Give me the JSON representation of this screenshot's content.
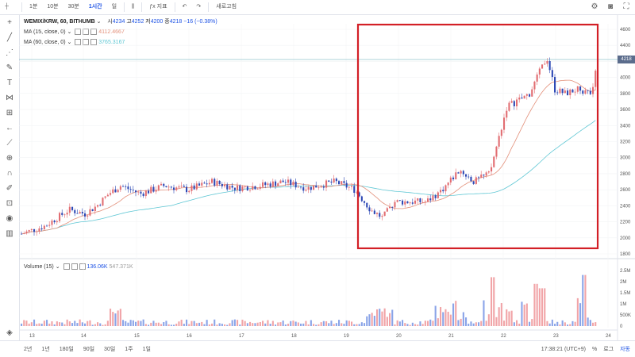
{
  "toolbar": {
    "intervals": [
      "1분",
      "10분",
      "30분",
      "1시간",
      "일"
    ],
    "active_interval": "1시간",
    "indicators_label": "지표",
    "refresh_label": "새로고침"
  },
  "left_tools": [
    "crosshair-icon",
    "trendline-icon",
    "fib-icon",
    "brush-icon",
    "text-icon",
    "pattern-icon",
    "measure-icon",
    "arrow-left-icon",
    "ruler-icon",
    "zoom-icon",
    "magnet-icon",
    "lock-drawing-icon",
    "lock-icon",
    "eye-icon",
    "trash-icon"
  ],
  "legend": {
    "title": "WEMIX/KRW, 60, BITHUMB",
    "open_label": "시",
    "open": "4234",
    "high_label": "고",
    "high": "4252",
    "low_label": "저",
    "low": "4200",
    "close_label": "종",
    "close": "4218",
    "change": "−16 (−0.38%)",
    "ma15_label": "MA (15, close, 0)",
    "ma15_value": "4112.4667",
    "ma60_label": "MA (60, close, 0)",
    "ma60_value": "3765.3167",
    "volume_label": "Volume (15)",
    "volume_value": "136.06K",
    "volume_ma": "547.371K"
  },
  "price_axis": [
    "4600",
    "4400",
    "4200",
    "4000",
    "3800",
    "3600",
    "3400",
    "3200",
    "3000",
    "2800",
    "2600",
    "2400",
    "2200",
    "2000",
    "1800"
  ],
  "current_price": "4218",
  "volume_axis": [
    "2.5M",
    "2M",
    "1.5M",
    "1M",
    "500K",
    "0"
  ],
  "time_axis": [
    "13",
    "14",
    "15",
    "16",
    "17",
    "18",
    "19",
    "20",
    "21",
    "22",
    "23",
    "24"
  ],
  "bottom": {
    "ranges": [
      "2년",
      "1년",
      "180일",
      "90일",
      "30일",
      "1주",
      "1일"
    ],
    "clock": "17:38:21 (UTC+9)",
    "percent": "%",
    "log": "로그",
    "auto": "자동"
  },
  "colors": {
    "up": "#e26d72",
    "down": "#2e49b5",
    "ma15": "#e3907a",
    "ma60": "#5fc7d4",
    "highlight": "#d31f26"
  }
}
